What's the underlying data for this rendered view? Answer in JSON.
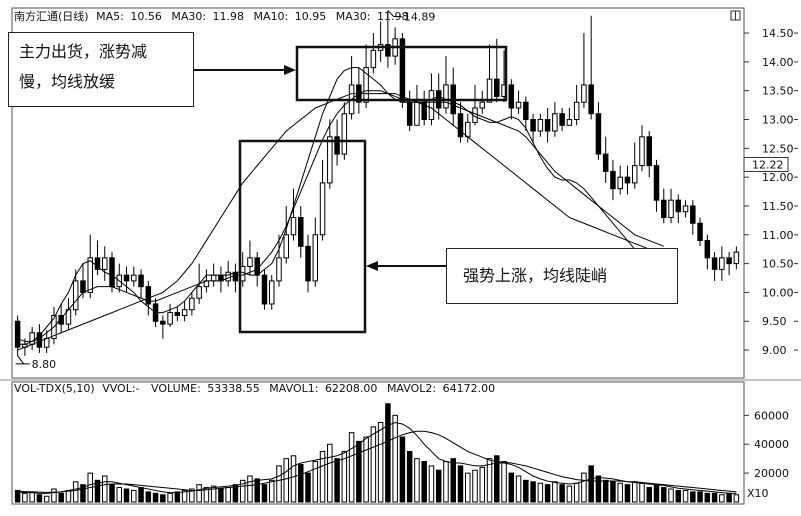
{
  "header": {
    "title": "南方汇通(日线)",
    "ma": [
      {
        "label": "MA5:",
        "value": "10.56"
      },
      {
        "label": "MA30:",
        "value": "11.98"
      },
      {
        "label": "MA10:",
        "value": "10.95"
      },
      {
        "label": "MA30:",
        "value": "11.98"
      }
    ]
  },
  "volume_header": {
    "indicator": "VOL-TDX(5,10)",
    "vvol": "VVOL:-",
    "volume_label": "VOLUME:",
    "volume_value": "53338.55",
    "mavol1_label": "MAVOL1:",
    "mavol1_value": "62208.00",
    "mavol2_label": "MAVOL2:",
    "mavol2_value": "64172.00"
  },
  "annotations": {
    "box1_line1": "主力出货，涨势减",
    "box1_line2": "慢，均线放缓",
    "box2": "强势上涨，均线陡峭"
  },
  "chart_data": {
    "type": "candlestick",
    "price": {
      "ylim": [
        8.55,
        14.9
      ],
      "ticks": [
        "9.00",
        "9.50",
        "10.00",
        "10.50",
        "11.00",
        "11.50",
        "12.00",
        "12.50",
        "13.00",
        "13.50",
        "14.00",
        "14.50"
      ],
      "current_label": "12.22",
      "low_label": "8.80",
      "high_label": "14.89",
      "candles": [
        [
          9.5,
          9.05,
          9.6,
          8.9
        ],
        [
          9.05,
          9.1,
          9.2,
          8.9
        ],
        [
          9.1,
          9.3,
          9.4,
          9.0
        ],
        [
          9.3,
          9.05,
          9.45,
          8.95
        ],
        [
          9.05,
          9.2,
          9.35,
          8.95
        ],
        [
          9.2,
          9.6,
          9.75,
          9.1
        ],
        [
          9.6,
          9.45,
          9.8,
          9.3
        ],
        [
          9.45,
          9.7,
          9.9,
          9.35
        ],
        [
          9.7,
          10.2,
          10.4,
          9.6
        ],
        [
          10.2,
          10.0,
          10.5,
          9.9
        ],
        [
          10.0,
          10.6,
          11.0,
          9.9
        ],
        [
          10.6,
          10.4,
          10.9,
          10.3
        ],
        [
          10.4,
          10.6,
          10.8,
          10.2
        ],
        [
          10.6,
          10.1,
          10.7,
          10.0
        ],
        [
          10.1,
          10.3,
          10.5,
          10.0
        ],
        [
          10.3,
          10.2,
          10.45,
          10.0
        ],
        [
          10.2,
          10.3,
          10.45,
          10.1
        ],
        [
          10.3,
          10.1,
          10.4,
          9.9
        ],
        [
          10.1,
          9.8,
          10.2,
          9.6
        ],
        [
          9.8,
          9.5,
          9.9,
          9.4
        ],
        [
          9.5,
          9.45,
          9.6,
          9.2
        ],
        [
          9.45,
          9.65,
          9.8,
          9.4
        ],
        [
          9.65,
          9.6,
          9.75,
          9.5
        ],
        [
          9.6,
          9.7,
          9.85,
          9.5
        ],
        [
          9.7,
          9.9,
          10.0,
          9.6
        ],
        [
          9.9,
          10.1,
          10.5,
          9.8
        ],
        [
          10.1,
          10.2,
          10.4,
          10.0
        ],
        [
          10.2,
          10.3,
          10.5,
          10.1
        ],
        [
          10.3,
          10.2,
          10.45,
          10.0
        ],
        [
          10.2,
          10.35,
          10.55,
          10.1
        ],
        [
          10.35,
          10.2,
          10.5,
          10.0
        ],
        [
          10.2,
          10.45,
          10.7,
          10.1
        ],
        [
          10.45,
          10.6,
          10.9,
          10.3
        ],
        [
          10.6,
          10.3,
          10.7,
          10.1
        ],
        [
          10.3,
          9.8,
          10.4,
          9.7
        ],
        [
          9.8,
          10.2,
          10.3,
          9.7
        ],
        [
          10.2,
          10.6,
          11.0,
          10.1
        ],
        [
          10.6,
          11.0,
          11.5,
          10.5
        ],
        [
          11.0,
          11.3,
          11.8,
          10.9
        ],
        [
          11.3,
          10.8,
          11.5,
          10.6
        ],
        [
          10.8,
          10.2,
          11.0,
          10.0
        ],
        [
          10.2,
          11.0,
          11.3,
          10.1
        ],
        [
          11.0,
          11.9,
          12.3,
          10.9
        ],
        [
          11.9,
          12.7,
          13.0,
          11.8
        ],
        [
          12.7,
          12.4,
          13.0,
          12.2
        ],
        [
          12.4,
          13.1,
          13.3,
          12.3
        ],
        [
          13.1,
          13.6,
          14.1,
          13.0
        ],
        [
          13.6,
          13.3,
          13.9,
          13.1
        ],
        [
          13.3,
          13.9,
          14.3,
          13.2
        ],
        [
          13.9,
          14.2,
          14.5,
          13.8
        ],
        [
          14.2,
          14.3,
          14.7,
          14.0
        ],
        [
          14.3,
          14.1,
          14.89,
          13.9
        ],
        [
          14.1,
          14.4,
          14.6,
          13.95
        ],
        [
          14.4,
          13.3,
          14.5,
          13.2
        ],
        [
          13.3,
          12.9,
          13.5,
          12.8
        ],
        [
          12.9,
          13.3,
          13.6,
          12.9
        ],
        [
          13.3,
          13.0,
          13.5,
          12.9
        ],
        [
          13.0,
          13.5,
          13.8,
          12.9
        ],
        [
          13.5,
          13.2,
          13.8,
          13.0
        ],
        [
          13.2,
          13.6,
          14.1,
          13.1
        ],
        [
          13.6,
          13.1,
          13.9,
          12.9
        ],
        [
          13.1,
          12.7,
          13.3,
          12.6
        ],
        [
          12.7,
          12.95,
          13.1,
          12.6
        ],
        [
          12.95,
          13.2,
          13.6,
          12.9
        ],
        [
          13.2,
          13.3,
          13.5,
          13.1
        ],
        [
          13.3,
          13.7,
          14.3,
          13.3
        ],
        [
          13.7,
          13.4,
          14.4,
          13.3
        ],
        [
          13.4,
          13.6,
          14.2,
          13.3
        ],
        [
          13.6,
          13.2,
          13.7,
          13.0
        ],
        [
          13.2,
          13.3,
          13.5,
          13.1
        ],
        [
          13.3,
          13.0,
          13.4,
          12.8
        ],
        [
          13.0,
          12.8,
          13.1,
          12.6
        ],
        [
          12.8,
          13.0,
          13.1,
          12.7
        ],
        [
          13.0,
          12.8,
          13.2,
          12.6
        ],
        [
          12.8,
          13.1,
          13.3,
          12.7
        ],
        [
          13.1,
          12.9,
          13.2,
          12.8
        ],
        [
          12.9,
          13.0,
          13.2,
          12.9
        ],
        [
          13.0,
          13.3,
          13.6,
          12.9
        ],
        [
          13.3,
          13.6,
          14.5,
          13.2
        ],
        [
          13.6,
          13.1,
          14.8,
          13.0
        ],
        [
          13.1,
          12.4,
          13.3,
          12.3
        ],
        [
          12.4,
          12.1,
          12.7,
          11.9
        ],
        [
          12.1,
          11.8,
          12.3,
          11.6
        ],
        [
          11.8,
          12.0,
          12.2,
          11.7
        ],
        [
          12.0,
          11.9,
          12.2,
          11.7
        ],
        [
          11.9,
          12.2,
          12.6,
          11.8
        ],
        [
          12.2,
          12.7,
          12.9,
          12.1
        ],
        [
          12.7,
          12.2,
          12.8,
          12.0
        ],
        [
          12.2,
          11.6,
          12.3,
          11.4
        ],
        [
          11.6,
          11.3,
          11.8,
          11.2
        ],
        [
          11.3,
          11.6,
          11.8,
          11.2
        ],
        [
          11.6,
          11.4,
          11.7,
          11.2
        ],
        [
          11.4,
          11.5,
          11.6,
          11.3
        ],
        [
          11.5,
          11.2,
          11.6,
          11.0
        ],
        [
          11.2,
          10.9,
          11.3,
          10.8
        ],
        [
          10.9,
          10.6,
          11.0,
          10.4
        ],
        [
          10.6,
          10.4,
          10.7,
          10.2
        ],
        [
          10.4,
          10.6,
          10.8,
          10.2
        ],
        [
          10.6,
          10.5,
          10.7,
          10.3
        ],
        [
          10.5,
          10.7,
          10.8,
          10.4
        ]
      ],
      "series": [
        {
          "color": "#000000",
          "values": [
            9.2,
            9.15,
            9.15,
            9.25,
            9.4,
            9.55,
            9.8,
            10.0,
            10.3,
            10.5,
            10.55,
            10.45,
            10.35,
            10.3,
            10.2,
            10.1,
            10.0,
            9.85,
            9.75,
            9.65,
            9.65,
            9.7,
            9.75,
            9.85,
            10.0,
            10.15,
            10.3,
            10.3,
            10.3,
            10.3,
            10.35,
            10.35,
            10.3,
            10.3,
            10.4,
            10.5,
            10.75,
            11.1,
            11.5,
            11.9,
            12.3,
            12.7,
            13.1,
            13.4,
            13.7,
            13.85,
            13.9,
            13.9,
            13.8,
            13.7,
            13.6,
            13.45,
            13.35,
            13.3,
            13.3,
            13.3,
            13.3,
            13.35,
            13.4,
            13.35,
            13.3,
            13.25,
            13.15,
            13.05,
            13.0,
            12.95,
            12.95,
            13.0,
            13.05,
            13.0,
            12.85,
            12.6,
            12.35,
            12.15,
            12.0,
            11.95,
            11.95,
            11.9,
            11.8,
            11.65,
            11.5,
            11.35,
            11.2,
            11.05,
            10.9,
            10.75,
            10.65,
            10.6,
            10.55,
            10.55
          ]
        },
        {
          "color": "#000000",
          "values": [
            9.1,
            9.1,
            9.15,
            9.2,
            9.3,
            9.4,
            9.55,
            9.7,
            9.85,
            10.0,
            10.05,
            10.1,
            10.1,
            10.1,
            10.05,
            10.0,
            9.95,
            9.9,
            9.85,
            9.85,
            9.9,
            9.95,
            10.0,
            10.05,
            10.1,
            10.15,
            10.2,
            10.2,
            10.2,
            10.25,
            10.3,
            10.3,
            10.35,
            10.4,
            10.55,
            10.7,
            10.9,
            11.15,
            11.45,
            11.75,
            12.05,
            12.35,
            12.65,
            12.9,
            13.1,
            13.25,
            13.35,
            13.45,
            13.5,
            13.5,
            13.5,
            13.45,
            13.4,
            13.35,
            13.3,
            13.3,
            13.3,
            13.3,
            13.3,
            13.3,
            13.25,
            13.2,
            13.15,
            13.1,
            13.05,
            13.0,
            12.95,
            12.9,
            12.85,
            12.8,
            12.7,
            12.55,
            12.4,
            12.25,
            12.1,
            12.0,
            11.9,
            11.8,
            11.7,
            11.6,
            11.5,
            11.4,
            11.3,
            11.2,
            11.1,
            11.0,
            10.95,
            10.9,
            10.85,
            10.8
          ]
        },
        {
          "color": "#000000",
          "values": [
            9.0,
            9.05,
            9.1,
            9.15,
            9.2,
            9.25,
            9.3,
            9.35,
            9.4,
            9.45,
            9.5,
            9.55,
            9.6,
            9.65,
            9.7,
            9.75,
            9.8,
            9.85,
            9.9,
            9.95,
            10.0,
            10.1,
            10.2,
            10.35,
            10.5,
            10.7,
            10.9,
            11.1,
            11.3,
            11.5,
            11.7,
            11.9,
            12.05,
            12.2,
            12.35,
            12.5,
            12.65,
            12.8,
            12.9,
            13.0,
            13.1,
            13.2,
            13.25,
            13.3,
            13.35,
            13.4,
            13.45,
            13.45,
            13.45,
            13.45,
            13.45,
            13.45,
            13.45,
            13.4,
            13.35,
            13.3,
            13.25,
            13.2,
            13.1,
            13.0,
            12.9,
            12.8,
            12.7,
            12.6,
            12.5,
            12.4,
            12.3,
            12.2,
            12.1,
            12.0,
            11.9,
            11.8,
            11.7,
            11.6,
            11.5,
            11.4,
            11.3,
            11.25,
            11.2,
            11.15,
            11.1,
            11.05,
            11.0,
            10.95,
            10.9,
            10.85,
            10.8,
            10.75,
            10.7,
            10.65
          ]
        }
      ]
    },
    "volume": {
      "ylim": [
        0,
        72000
      ],
      "ticks": [
        "20000",
        "40000",
        "60000"
      ],
      "multiplier_label": "X10",
      "values": [
        8000,
        6000,
        7000,
        5000,
        4000,
        9000,
        6000,
        8000,
        14000,
        12000,
        20000,
        15000,
        18000,
        12000,
        10000,
        9000,
        8000,
        10000,
        7000,
        6000,
        5000,
        6000,
        7000,
        8000,
        9000,
        12000,
        10000,
        11000,
        9000,
        10000,
        12000,
        15000,
        18000,
        16000,
        12000,
        15000,
        25000,
        30000,
        32000,
        26000,
        20000,
        28000,
        35000,
        40000,
        30000,
        35000,
        48000,
        42000,
        45000,
        52000,
        55000,
        68000,
        60000,
        45000,
        35000,
        30000,
        28000,
        25000,
        22000,
        28000,
        30000,
        25000,
        20000,
        22000,
        24000,
        30000,
        32000,
        28000,
        20000,
        18000,
        15000,
        14000,
        13000,
        12000,
        14000,
        12000,
        11000,
        13000,
        20000,
        25000,
        18000,
        15000,
        14000,
        13000,
        12000,
        14000,
        13000,
        10000,
        12000,
        10000,
        9000,
        8000,
        8000,
        7000,
        7000,
        6000,
        6000,
        5000,
        6000,
        5000
      ],
      "mavol1": [
        7000,
        6500,
        6500,
        6000,
        6000,
        6500,
        7000,
        8000,
        9000,
        10000,
        12000,
        13000,
        14000,
        14000,
        13000,
        12000,
        11000,
        10000,
        9000,
        8000,
        7000,
        6500,
        6500,
        7000,
        7500,
        8500,
        9500,
        10000,
        10500,
        11000,
        11500,
        12500,
        14000,
        15000,
        15500,
        16000,
        18000,
        21000,
        25000,
        27000,
        28000,
        29000,
        30000,
        31000,
        32000,
        34000,
        37000,
        40000,
        44000,
        47000,
        50000,
        53000,
        55000,
        54000,
        51000,
        46000,
        40000,
        35000,
        30000,
        28000,
        27000,
        27000,
        26000,
        25000,
        25000,
        26000,
        27000,
        27000,
        26000,
        24000,
        21000,
        18000,
        16000,
        14500,
        13500,
        13000,
        12500,
        13000,
        14500,
        16000,
        17000,
        16500,
        16000,
        15000,
        14000,
        13500,
        13000,
        12500,
        12000,
        11500,
        10500,
        9500,
        9000,
        8500,
        8000,
        7500,
        7000,
        6500,
        6000,
        6000
      ],
      "mavol2": [
        7500,
        7200,
        7000,
        6800,
        6700,
        6800,
        7000,
        7500,
        8000,
        9000,
        10000,
        11000,
        12000,
        12500,
        12500,
        12500,
        12000,
        11500,
        11000,
        10500,
        10000,
        9500,
        9000,
        8500,
        8000,
        8000,
        8500,
        9000,
        9500,
        10000,
        10500,
        11000,
        11500,
        12000,
        13000,
        14000,
        15000,
        16000,
        17500,
        19000,
        21000,
        23000,
        25000,
        27000,
        28500,
        30000,
        32000,
        34000,
        36000,
        38000,
        40000,
        42000,
        44500,
        46500,
        48000,
        49000,
        49000,
        48000,
        46500,
        44000,
        41000,
        38000,
        35000,
        33000,
        31000,
        29000,
        28000,
        27500,
        27000,
        26000,
        25000,
        23500,
        22000,
        20500,
        19000,
        17500,
        16500,
        15500,
        15000,
        14500,
        14500,
        14500,
        14500,
        14500,
        14000,
        14000,
        13500,
        13000,
        12500,
        12000,
        11500,
        11000,
        10500,
        10000,
        9500,
        9000,
        8500,
        8000,
        7500,
        7000
      ]
    }
  }
}
